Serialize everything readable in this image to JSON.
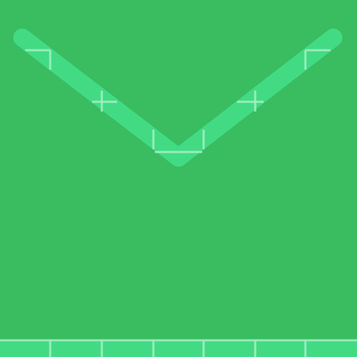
{
  "icon": {
    "name": "mail-envelope-icon"
  },
  "colors": {
    "background": "#39BD60",
    "flap_stroke": "#42DB84",
    "grid_lines": "#A9EFC7",
    "bottom_band": "#42DB84"
  }
}
